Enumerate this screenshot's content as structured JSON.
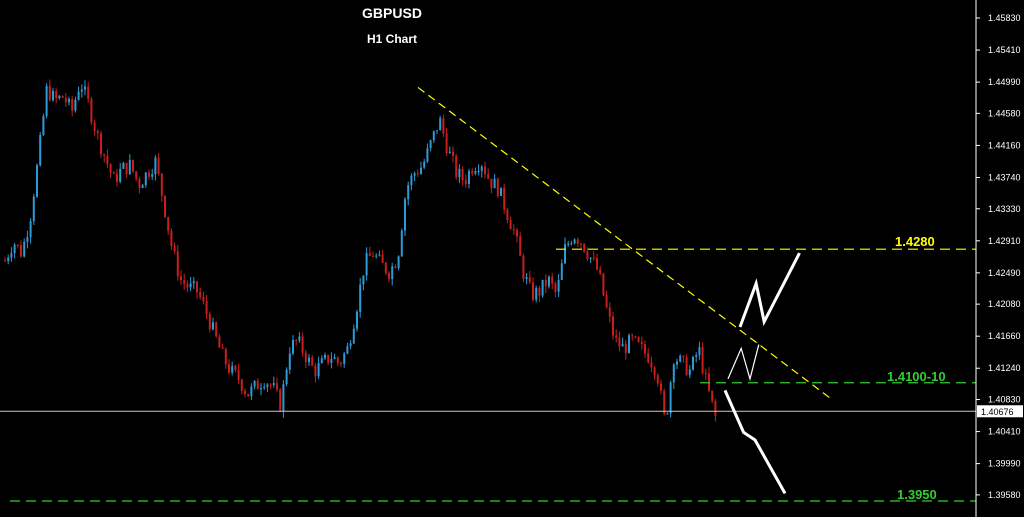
{
  "chart_data": {
    "type": "candlestick",
    "title": "GBPUSD",
    "subtitle": "H1 Chart",
    "ylim": [
      1.395,
      1.4583
    ],
    "y_ticks": [
      "1.45830",
      "1.45410",
      "1.44990",
      "1.44580",
      "1.44160",
      "1.43740",
      "1.43330",
      "1.42910",
      "1.42490",
      "1.42080",
      "1.41660",
      "1.41240",
      "1.40830",
      "1.40410",
      "1.39990",
      "1.39580"
    ],
    "current_price": "1.40676",
    "levels": [
      {
        "label": "1.4280",
        "value": 1.428,
        "color": "#ffff00"
      },
      {
        "label": "1.4100-10",
        "value": 1.4105,
        "color": "#33cc33"
      },
      {
        "label": "1.3950",
        "value": 1.395,
        "color": "#33cc33"
      }
    ],
    "trendline": {
      "from": [
        0,
        1.4492
      ],
      "to": [
        1,
        1.4085
      ],
      "color": "#ffff00"
    },
    "price_path": [
      1.4265,
      1.429,
      1.4275,
      1.432,
      1.44,
      1.449,
      1.4475,
      1.448,
      1.446,
      1.45,
      1.447,
      1.443,
      1.44,
      1.437,
      1.4385,
      1.439,
      1.4365,
      1.438,
      1.4395,
      1.434,
      1.428,
      1.424,
      1.423,
      1.4225,
      1.42,
      1.417,
      1.414,
      1.412,
      1.411,
      1.409,
      1.41,
      1.411,
      1.41,
      1.4075,
      1.415,
      1.416,
      1.414,
      1.412,
      1.413,
      1.414,
      1.413,
      1.415,
      1.42,
      1.426,
      1.4275,
      1.426,
      1.425,
      1.427,
      1.436,
      1.438,
      1.439,
      1.442,
      1.445,
      1.441,
      1.438,
      1.437,
      1.439,
      1.4395,
      1.437,
      1.436,
      1.433,
      1.43,
      1.425,
      1.422,
      1.4225,
      1.424,
      1.422,
      1.428,
      1.43,
      1.429,
      1.427,
      1.425,
      1.42,
      1.416,
      1.415,
      1.416,
      1.415,
      1.414,
      1.412,
      1.405,
      1.414,
      1.413,
      1.412,
      1.415,
      1.41,
      1.406
    ],
    "projections": [
      {
        "color": "#ffffff",
        "points": [
          [
            0.0,
            1.4178
          ],
          [
            0.271,
            1.4235
          ],
          [
            0.406,
            1.4185
          ],
          [
            1.0,
            1.4275
          ]
        ]
      },
      {
        "color": "#ffffff",
        "points": [
          [
            0.0,
            1.411
          ],
          [
            0.6,
            1.415
          ],
          [
            1.0,
            1.411
          ],
          [
            1.4,
            1.4155
          ]
        ]
      },
      {
        "color": "#ffffff",
        "points": [
          [
            0.0,
            1.4095
          ],
          [
            0.31,
            1.404
          ],
          [
            0.5,
            1.403
          ],
          [
            1.0,
            1.396
          ]
        ]
      }
    ],
    "colors": {
      "bull": "#2e9bd6",
      "bear": "#c81e1e",
      "background": "#000000",
      "axis": "#ffffff"
    }
  }
}
